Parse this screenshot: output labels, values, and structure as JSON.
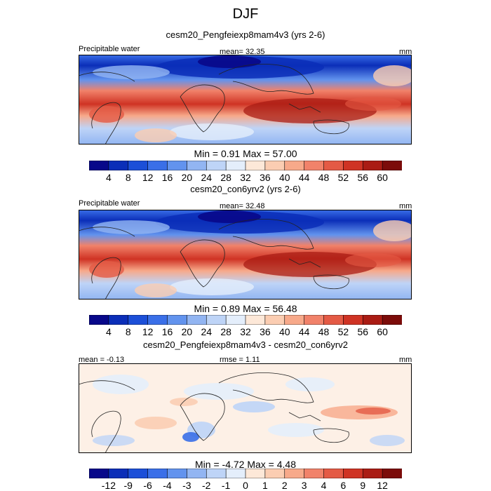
{
  "figure": {
    "title": "DJF",
    "colors": {
      "abs_scale": [
        "#08088a",
        "#0b2eb8",
        "#1c4fd8",
        "#3a6fe8",
        "#6293ee",
        "#92b5f2",
        "#bed4f7",
        "#e4eefb",
        "#fde8d8",
        "#fbcdb2",
        "#f7a98a",
        "#f1826a",
        "#e45a45",
        "#cf3324",
        "#aa1c14",
        "#7c0c0a"
      ],
      "diff_scale": [
        "#08088a",
        "#0b2eb8",
        "#1c4fd8",
        "#3a6fe8",
        "#6293ee",
        "#92b5f2",
        "#bed4f7",
        "#e4eefb",
        "#fde8d8",
        "#fbcdb2",
        "#f7a98a",
        "#f1826a",
        "#e45a45",
        "#cf3324",
        "#aa1c14",
        "#7c0c0a"
      ]
    }
  },
  "panels": [
    {
      "title": "cesm20_Pengfeiexp8mam4v3 (yrs 2-6)",
      "left_label": "Precipitable water",
      "center_label": "mean=  32.35",
      "right_label": "mm",
      "minmax": "Min =   0.91 Max =  57.00"
    },
    {
      "title": "cesm20_con6yrv2 (yrs 2-6)",
      "left_label": "Precipitable water",
      "center_label": "mean=  32.48",
      "right_label": "mm",
      "minmax": "Min =   0.89 Max =  56.48"
    },
    {
      "title": "cesm20_Pengfeiexp8mam4v3 - cesm20_con6yrv2",
      "left_label": "mean =  -0.13",
      "center_label": "rmse =   1.11",
      "right_label": "mm",
      "minmax": "Min =  -4.72 Max =   4.48"
    }
  ],
  "chart_data": [
    {
      "type": "heatmap",
      "title": "cesm20_Pengfeiexp8mam4v3 (yrs 2-6)",
      "variable": "Precipitable water",
      "units": "mm",
      "mean": 32.35,
      "min": 0.91,
      "max": 57.0,
      "colorbar_levels": [
        4,
        8,
        12,
        16,
        20,
        24,
        28,
        32,
        36,
        40,
        44,
        48,
        52,
        56,
        60
      ]
    },
    {
      "type": "heatmap",
      "title": "cesm20_con6yrv2 (yrs 2-6)",
      "variable": "Precipitable water",
      "units": "mm",
      "mean": 32.48,
      "min": 0.89,
      "max": 56.48,
      "colorbar_levels": [
        4,
        8,
        12,
        16,
        20,
        24,
        28,
        32,
        36,
        40,
        44,
        48,
        52,
        56,
        60
      ]
    },
    {
      "type": "heatmap",
      "title": "cesm20_Pengfeiexp8mam4v3 - cesm20_con6yrv2",
      "units": "mm",
      "mean": -0.13,
      "rmse": 1.11,
      "min": -4.72,
      "max": 4.48,
      "colorbar_levels": [
        -12,
        -9,
        -6,
        -4,
        -3,
        -2,
        -1,
        0,
        1,
        2,
        3,
        4,
        6,
        9,
        12
      ]
    }
  ]
}
